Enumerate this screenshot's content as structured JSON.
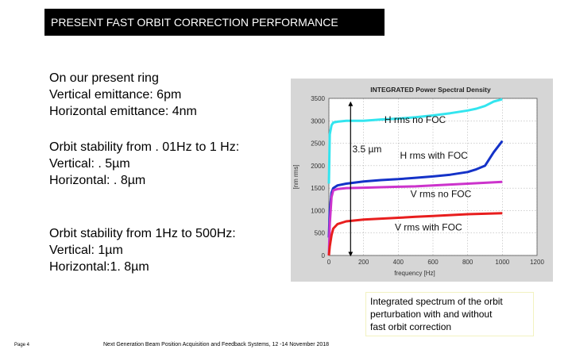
{
  "header": {
    "title": "PRESENT FAST ORBIT CORRECTION PERFORMANCE"
  },
  "left": {
    "block1": [
      "On our present ring",
      "Vertical emittance: 6pm",
      "Horizontal emittance: 4nm"
    ],
    "block2": [
      "Orbit stability from . 01Hz to 1 Hz:",
      "Vertical: . 5µm",
      "Horizontal: . 8µm"
    ],
    "block3": [
      "Orbit stability from 1Hz to 500Hz:",
      "Vertical: 1µm",
      "Horizontal:1. 8µm"
    ]
  },
  "figure": {
    "title": "INTEGRATED Power Spectral Density",
    "arrow_label": "3.5 µm",
    "background": "#d6d6d6",
    "plot_bg": "#ffffff"
  },
  "chart_data": {
    "type": "line",
    "title": "INTEGRATED Power Spectral Density",
    "xlabel": "frequency [Hz]",
    "ylabel": "[nm rms]",
    "xlim": [
      0,
      1200
    ],
    "ylim": [
      0,
      3500
    ],
    "xticks": [
      0,
      200,
      400,
      600,
      800,
      1000,
      1200
    ],
    "yticks": [
      0,
      500,
      1000,
      1500,
      2000,
      2500,
      3000,
      3500
    ],
    "xtick_labels": [
      "0",
      "200",
      "400",
      "600",
      "800",
      "1000",
      "1200"
    ],
    "ytick_labels": [
      "0",
      "500",
      "1000",
      "1500",
      "2000",
      "2500",
      "3000",
      "3500"
    ],
    "grid": true,
    "series": [
      {
        "name": "H rms no FOC",
        "color": "#33e5ef",
        "x": [
          0,
          5,
          15,
          25,
          50,
          100,
          200,
          300,
          400,
          500,
          600,
          700,
          800,
          850,
          900,
          950,
          1000
        ],
        "y": [
          1600,
          2700,
          2900,
          2960,
          2980,
          3000,
          3000,
          3030,
          3050,
          3080,
          3120,
          3170,
          3230,
          3270,
          3330,
          3430,
          3480
        ]
      },
      {
        "name": "H rms with FOC",
        "color": "#1432c8",
        "x": [
          0,
          5,
          15,
          25,
          50,
          100,
          200,
          300,
          400,
          500,
          600,
          700,
          800,
          850,
          900,
          950,
          1000
        ],
        "y": [
          400,
          1000,
          1400,
          1500,
          1560,
          1600,
          1650,
          1680,
          1700,
          1730,
          1760,
          1800,
          1860,
          1920,
          2000,
          2300,
          2550
        ]
      },
      {
        "name": "V rms no FOC",
        "color": "#cc33cc",
        "x": [
          0,
          5,
          15,
          25,
          50,
          100,
          200,
          300,
          400,
          500,
          600,
          700,
          800,
          900,
          1000
        ],
        "y": [
          0,
          700,
          1300,
          1450,
          1480,
          1500,
          1510,
          1520,
          1530,
          1540,
          1560,
          1580,
          1600,
          1620,
          1640
        ]
      },
      {
        "name": "V rms with FOC",
        "color": "#e81e1e",
        "x": [
          0,
          5,
          15,
          25,
          50,
          100,
          200,
          300,
          400,
          500,
          600,
          700,
          800,
          900,
          1000
        ],
        "y": [
          0,
          200,
          450,
          600,
          700,
          760,
          800,
          820,
          840,
          860,
          880,
          900,
          920,
          930,
          940
        ]
      }
    ],
    "annotations": [
      "H rms no FOC",
      "3.5 µm",
      "H rms with FOC",
      "V rms no FOC",
      "V rms with FOC"
    ]
  },
  "caption": [
    "Integrated spectrum of the orbit",
    "perturbation with and without",
    "fast orbit correction"
  ],
  "footer": {
    "page": "Page 4",
    "text": "Next Generation Beam Position Acquisition and Feedback Systems, 12 -14 November 2018"
  }
}
